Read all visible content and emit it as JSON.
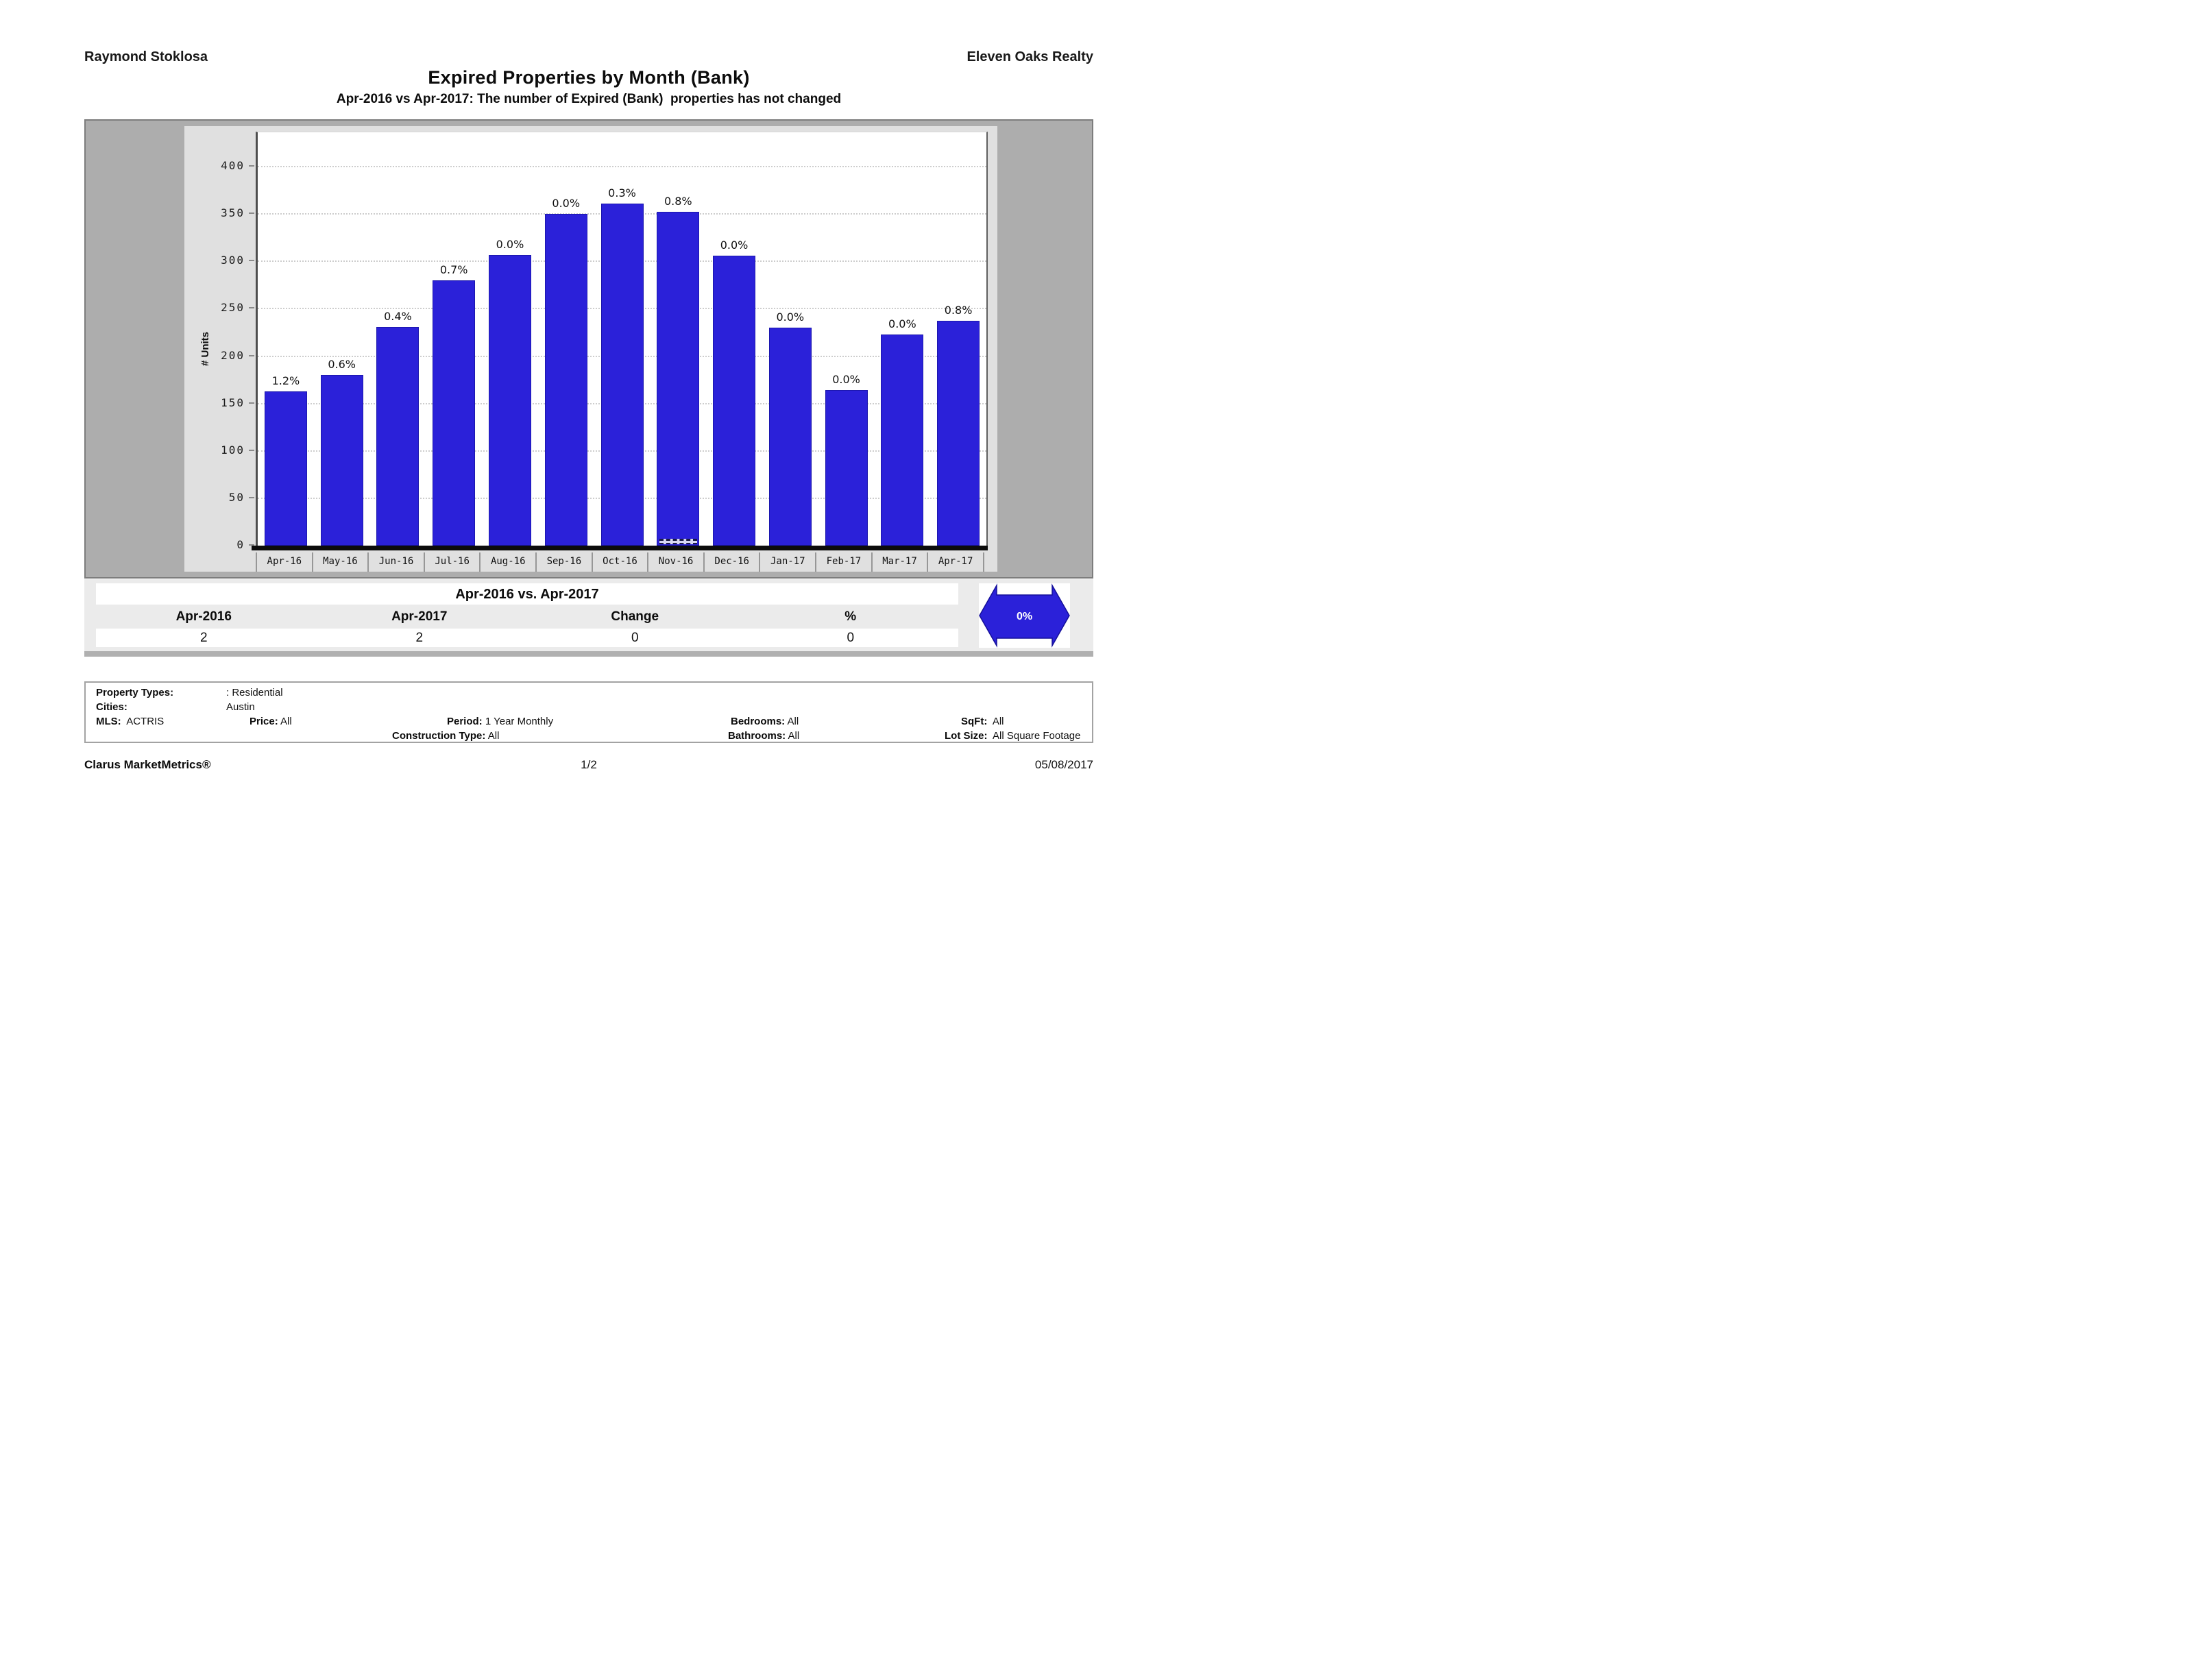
{
  "header": {
    "agent": "Raymond Stoklosa",
    "company": "Eleven Oaks Realty"
  },
  "title": "Expired Properties by Month (Bank)",
  "subtitle": "Apr-2016 vs Apr-2017: The number of Expired (Bank)  properties has not changed",
  "chart_data": {
    "type": "bar",
    "title": "Expired Properties by Month (Bank)",
    "xlabel": "",
    "ylabel": "# Units",
    "categories": [
      "Apr-16",
      "May-16",
      "Jun-16",
      "Jul-16",
      "Aug-16",
      "Sep-16",
      "Oct-16",
      "Nov-16",
      "Dec-16",
      "Jan-17",
      "Feb-17",
      "Mar-17",
      "Apr-17"
    ],
    "values": [
      163,
      180,
      231,
      280,
      307,
      350,
      361,
      352,
      306,
      230,
      164,
      223,
      237
    ],
    "bar_labels": [
      "1.2%",
      "0.6%",
      "0.4%",
      "0.7%",
      "0.0%",
      "0.0%",
      "0.3%",
      "0.8%",
      "0.0%",
      "0.0%",
      "0.0%",
      "0.0%",
      "0.8%"
    ],
    "ylim": [
      0,
      430
    ],
    "yticks": [
      0,
      50,
      100,
      150,
      200,
      250,
      300,
      350,
      400
    ],
    "grid": "dotted-horizontal",
    "legend": "none",
    "bar_color": "#2b21d9",
    "dashed_segment": {
      "category": "Nov-16",
      "height_units": 6
    }
  },
  "summary_table": {
    "title": "Apr-2016 vs. Apr-2017",
    "columns": [
      "Apr-2016",
      "Apr-2017",
      "Change",
      "%"
    ],
    "values": [
      "2",
      "2",
      "0",
      "0"
    ],
    "change_badge": {
      "label": "0%",
      "color": "#2b21d9",
      "shape": "double-arrow"
    }
  },
  "criteria": {
    "property_types_label": "Property Types:",
    "property_types": ": Residential",
    "cities_label": "Cities:",
    "cities": "Austin",
    "mls_label": "MLS:",
    "mls": "ACTRIS",
    "price_label": "Price:",
    "price": "All",
    "period_label": "Period:",
    "period": "1 Year Monthly",
    "bedrooms_label": "Bedrooms:",
    "bedrooms": "All",
    "sqft_label": "SqFt:",
    "sqft": "All",
    "construction_label": "Construction Type:",
    "construction": "All",
    "bathrooms_label": "Bathrooms:",
    "bathrooms": "All",
    "lot_size_label": "Lot Size:",
    "lot_size": "All Square Footage"
  },
  "footer": {
    "brand": "Clarus MarketMetrics®",
    "page": "1/2",
    "date": "05/08/2017"
  }
}
